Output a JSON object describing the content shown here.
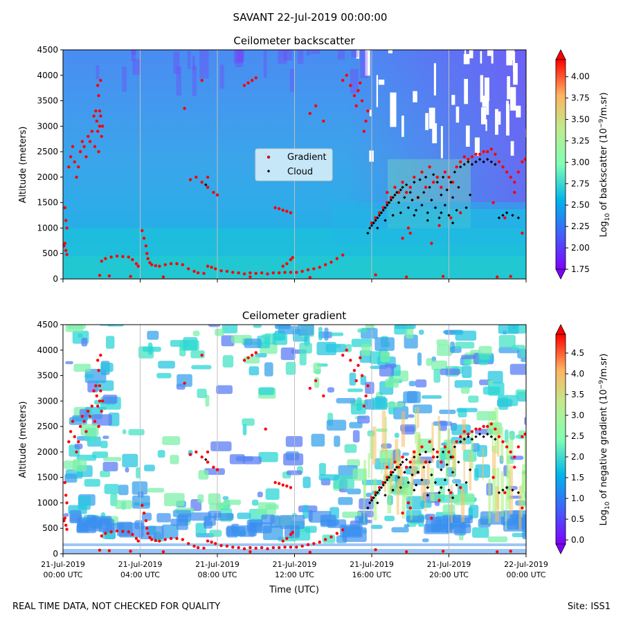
{
  "figure_title": "SAVANT 22-Jul-2019 00:00:00",
  "footer_left": "REAL TIME DATA, NOT CHECKED FOR QUALITY",
  "footer_right": "Site: ISS1",
  "chart_data": [
    {
      "type": "heatmap",
      "title": "Ceilometer backscatter",
      "ylabel": "Altitude (meters)",
      "xlabel": "",
      "ylim": [
        0,
        4500
      ],
      "xlim_hours": [
        0,
        24
      ],
      "yticks": [
        "0",
        "500",
        "1000",
        "1500",
        "2000",
        "2500",
        "3000",
        "3500",
        "4000",
        "4500"
      ],
      "colorbar": {
        "label_main": "Log",
        "label_sub": "10",
        "label_rest": " of backscatter (10",
        "label_exp": "−9",
        "label_end": "/m.sr)",
        "range": [
          1.75,
          4.2
        ],
        "ticks": [
          "1.75",
          "2.00",
          "2.25",
          "2.50",
          "2.75",
          "3.00",
          "3.25",
          "3.50",
          "3.75",
          "4.00"
        ],
        "colormap": "rainbow"
      },
      "legend": {
        "placement": "center",
        "entries": [
          {
            "name": "Gradient",
            "color": "#ff0000"
          },
          {
            "name": "Cloud",
            "color": "#000000"
          }
        ]
      },
      "grid": "vertical-only"
    },
    {
      "type": "heatmap",
      "title": "Ceilometer gradient",
      "ylabel": "Altitude (meters)",
      "xlabel": "Time (UTC)",
      "ylim": [
        0,
        4500
      ],
      "xlim_hours": [
        0,
        24
      ],
      "yticks": [
        "0",
        "500",
        "1000",
        "1500",
        "2000",
        "2500",
        "3000",
        "3500",
        "4000",
        "4500"
      ],
      "xticks": [
        {
          "line1": "21-Jul-2019",
          "line2": "00:00 UTC"
        },
        {
          "line1": "21-Jul-2019",
          "line2": "04:00 UTC"
        },
        {
          "line1": "21-Jul-2019",
          "line2": "08:00 UTC"
        },
        {
          "line1": "21-Jul-2019",
          "line2": "12:00 UTC"
        },
        {
          "line1": "21-Jul-2019",
          "line2": "16:00 UTC"
        },
        {
          "line1": "21-Jul-2019",
          "line2": "20:00 UTC"
        },
        {
          "line1": "22-Jul-2019",
          "line2": "00:00 UTC"
        }
      ],
      "colorbar": {
        "label_main": "Log",
        "label_sub": "10",
        "label_rest": " of negative gradient (10",
        "label_exp": "−9",
        "label_end": "/m.sr)",
        "range": [
          -0.1,
          4.95
        ],
        "ticks": [
          "0.0",
          "0.5",
          "1.0",
          "1.5",
          "2.0",
          "2.5",
          "3.0",
          "3.5",
          "4.0",
          "4.5"
        ],
        "colormap": "rainbow"
      },
      "grid": "vertical-only"
    }
  ],
  "series": {
    "gradient_points": [
      [
        0.05,
        650
      ],
      [
        0.1,
        700
      ],
      [
        0.15,
        560
      ],
      [
        0.2,
        480
      ],
      [
        0.1,
        1400
      ],
      [
        0.15,
        1150
      ],
      [
        0.2,
        1000
      ],
      [
        0.3,
        2200
      ],
      [
        0.4,
        2400
      ],
      [
        0.5,
        2600
      ],
      [
        0.6,
        2300
      ],
      [
        0.7,
        2000
      ],
      [
        0.8,
        2200
      ],
      [
        0.9,
        2500
      ],
      [
        1.0,
        2700
      ],
      [
        1.1,
        2600
      ],
      [
        1.2,
        2400
      ],
      [
        1.3,
        2800
      ],
      [
        1.4,
        2700
      ],
      [
        1.5,
        2900
      ],
      [
        1.6,
        3200
      ],
      [
        1.7,
        3300
      ],
      [
        1.75,
        3100
      ],
      [
        1.8,
        2900
      ],
      [
        1.9,
        3000
      ],
      [
        1.95,
        3200
      ],
      [
        2.0,
        2800
      ],
      [
        2.05,
        3000
      ],
      [
        1.85,
        2500
      ],
      [
        1.65,
        2600
      ],
      [
        1.8,
        3800
      ],
      [
        1.85,
        3600
      ],
      [
        1.9,
        3300
      ],
      [
        1.95,
        3900
      ],
      [
        2.0,
        350
      ],
      [
        2.2,
        400
      ],
      [
        2.5,
        430
      ],
      [
        2.8,
        450
      ],
      [
        3.1,
        440
      ],
      [
        3.4,
        430
      ],
      [
        3.6,
        380
      ],
      [
        3.8,
        300
      ],
      [
        3.9,
        250
      ],
      [
        4.1,
        950
      ],
      [
        4.2,
        800
      ],
      [
        4.3,
        650
      ],
      [
        4.35,
        500
      ],
      [
        4.4,
        400
      ],
      [
        4.5,
        320
      ],
      [
        4.6,
        280
      ],
      [
        4.8,
        260
      ],
      [
        5.0,
        250
      ],
      [
        5.3,
        280
      ],
      [
        5.6,
        300
      ],
      [
        5.9,
        300
      ],
      [
        6.2,
        280
      ],
      [
        6.5,
        200
      ],
      [
        6.8,
        150
      ],
      [
        7.0,
        120
      ],
      [
        7.3,
        110
      ],
      [
        7.5,
        250
      ],
      [
        7.7,
        230
      ],
      [
        7.9,
        200
      ],
      [
        8.2,
        160
      ],
      [
        8.5,
        150
      ],
      [
        8.8,
        130
      ],
      [
        9.1,
        120
      ],
      [
        9.4,
        100
      ],
      [
        9.7,
        120
      ],
      [
        10.0,
        110
      ],
      [
        10.3,
        120
      ],
      [
        10.6,
        100
      ],
      [
        10.9,
        120
      ],
      [
        11.2,
        120
      ],
      [
        11.5,
        130
      ],
      [
        11.8,
        130
      ],
      [
        12.1,
        130
      ],
      [
        12.4,
        150
      ],
      [
        12.7,
        180
      ],
      [
        13.0,
        200
      ],
      [
        13.3,
        230
      ],
      [
        13.6,
        280
      ],
      [
        13.9,
        330
      ],
      [
        14.2,
        400
      ],
      [
        14.5,
        470
      ],
      [
        11.4,
        250
      ],
      [
        11.6,
        300
      ],
      [
        11.8,
        380
      ],
      [
        11.9,
        420
      ],
      [
        6.6,
        1950
      ],
      [
        6.9,
        2000
      ],
      [
        7.2,
        1900
      ],
      [
        7.5,
        1800
      ],
      [
        7.8,
        1700
      ],
      [
        8.0,
        1650
      ],
      [
        6.3,
        3350
      ],
      [
        7.5,
        2000
      ],
      [
        10.5,
        2450
      ],
      [
        11.0,
        1400
      ],
      [
        11.2,
        1380
      ],
      [
        11.4,
        1350
      ],
      [
        11.6,
        1330
      ],
      [
        11.8,
        1300
      ],
      [
        9.4,
        3800
      ],
      [
        9.6,
        3850
      ],
      [
        9.8,
        3900
      ],
      [
        10.0,
        3950
      ],
      [
        7.2,
        3900
      ],
      [
        12.8,
        3250
      ],
      [
        13.1,
        3400
      ],
      [
        13.5,
        3100
      ],
      [
        14.5,
        3900
      ],
      [
        14.7,
        4000
      ],
      [
        14.9,
        3800
      ],
      [
        15.1,
        3600
      ],
      [
        15.2,
        3400
      ],
      [
        15.3,
        3700
      ],
      [
        15.4,
        3850
      ],
      [
        15.5,
        3500
      ],
      [
        15.6,
        2900
      ],
      [
        15.7,
        3100
      ],
      [
        15.8,
        3300
      ],
      [
        1.9,
        70
      ],
      [
        2.4,
        60
      ],
      [
        3.5,
        50
      ],
      [
        5.2,
        40
      ],
      [
        9.7,
        40
      ],
      [
        12.8,
        30
      ],
      [
        16.2,
        80
      ],
      [
        17.8,
        40
      ],
      [
        19.7,
        50
      ],
      [
        22.5,
        40
      ],
      [
        23.2,
        50
      ],
      [
        16.0,
        1100
      ],
      [
        16.2,
        1200
      ],
      [
        16.4,
        1300
      ],
      [
        16.6,
        1400
      ],
      [
        16.8,
        1500
      ],
      [
        17.0,
        1600
      ],
      [
        17.2,
        1800
      ],
      [
        17.4,
        1700
      ],
      [
        17.6,
        1900
      ],
      [
        17.8,
        1700
      ],
      [
        18.0,
        1800
      ],
      [
        18.2,
        2000
      ],
      [
        18.4,
        1600
      ],
      [
        18.6,
        2100
      ],
      [
        18.8,
        1800
      ],
      [
        19.0,
        2200
      ],
      [
        19.2,
        1900
      ],
      [
        19.4,
        2000
      ],
      [
        19.6,
        1800
      ],
      [
        19.8,
        2100
      ],
      [
        20.0,
        2000
      ],
      [
        20.2,
        1900
      ],
      [
        20.4,
        2200
      ],
      [
        20.6,
        2300
      ],
      [
        20.8,
        2400
      ],
      [
        21.0,
        2350
      ],
      [
        21.2,
        2400
      ],
      [
        21.4,
        2450
      ],
      [
        21.6,
        2450
      ],
      [
        21.8,
        2500
      ],
      [
        22.0,
        2500
      ],
      [
        22.2,
        2550
      ],
      [
        22.4,
        2450
      ],
      [
        22.6,
        2300
      ],
      [
        22.8,
        2200
      ],
      [
        23.0,
        2100
      ],
      [
        23.2,
        2000
      ],
      [
        23.4,
        1900
      ],
      [
        23.6,
        2100
      ],
      [
        23.8,
        2300
      ],
      [
        23.95,
        2350
      ],
      [
        17.6,
        800
      ],
      [
        18.0,
        900
      ],
      [
        19.1,
        700
      ],
      [
        19.5,
        1050
      ],
      [
        20.1,
        1200
      ],
      [
        20.6,
        1300
      ],
      [
        22.3,
        1500
      ],
      [
        22.9,
        1200
      ],
      [
        23.4,
        1700
      ],
      [
        23.8,
        900
      ],
      [
        16.8,
        1700
      ],
      [
        17.9,
        1000
      ]
    ],
    "cloud_points": [
      [
        7.4,
        1850
      ],
      [
        15.8,
        900
      ],
      [
        15.9,
        1000
      ],
      [
        16.0,
        1050
      ],
      [
        16.1,
        1100
      ],
      [
        16.2,
        1150
      ],
      [
        16.3,
        1200
      ],
      [
        16.4,
        1250
      ],
      [
        16.5,
        1300
      ],
      [
        16.6,
        1350
      ],
      [
        16.7,
        1400
      ],
      [
        16.8,
        1450
      ],
      [
        16.9,
        1500
      ],
      [
        17.0,
        1550
      ],
      [
        17.1,
        1600
      ],
      [
        17.2,
        1650
      ],
      [
        17.3,
        1700
      ],
      [
        17.4,
        1500
      ],
      [
        17.5,
        1750
      ],
      [
        17.6,
        1800
      ],
      [
        17.7,
        1600
      ],
      [
        17.8,
        1850
      ],
      [
        17.9,
        1400
      ],
      [
        18.0,
        1700
      ],
      [
        18.1,
        1550
      ],
      [
        18.2,
        1900
      ],
      [
        18.3,
        1350
      ],
      [
        18.4,
        1600
      ],
      [
        18.5,
        1950
      ],
      [
        18.6,
        1450
      ],
      [
        18.7,
        1700
      ],
      [
        18.8,
        2000
      ],
      [
        18.9,
        1300
      ],
      [
        19.0,
        1800
      ],
      [
        19.1,
        1550
      ],
      [
        19.2,
        2050
      ],
      [
        19.3,
        1400
      ],
      [
        19.4,
        1900
      ],
      [
        19.5,
        1200
      ],
      [
        19.6,
        1650
      ],
      [
        19.7,
        2000
      ],
      [
        19.8,
        1450
      ],
      [
        19.9,
        1750
      ],
      [
        20.0,
        1250
      ],
      [
        20.1,
        1900
      ],
      [
        20.2,
        1600
      ],
      [
        20.3,
        2100
      ],
      [
        20.4,
        1350
      ],
      [
        20.5,
        1800
      ],
      [
        20.6,
        2200
      ],
      [
        20.8,
        2250
      ],
      [
        21.0,
        2300
      ],
      [
        21.2,
        2250
      ],
      [
        21.4,
        2300
      ],
      [
        21.6,
        2350
      ],
      [
        21.8,
        2300
      ],
      [
        22.0,
        2350
      ],
      [
        22.2,
        2300
      ],
      [
        22.4,
        2250
      ],
      [
        22.6,
        1200
      ],
      [
        22.8,
        1250
      ],
      [
        23.0,
        1300
      ],
      [
        23.3,
        1250
      ],
      [
        23.6,
        1200
      ],
      [
        16.3,
        1000
      ],
      [
        16.7,
        1150
      ],
      [
        17.1,
        1250
      ],
      [
        17.5,
        1300
      ],
      [
        18.2,
        1250
      ],
      [
        18.9,
        1150
      ],
      [
        19.6,
        1300
      ],
      [
        20.2,
        1100
      ],
      [
        20.9,
        1400
      ],
      [
        21.1,
        1650
      ]
    ]
  }
}
